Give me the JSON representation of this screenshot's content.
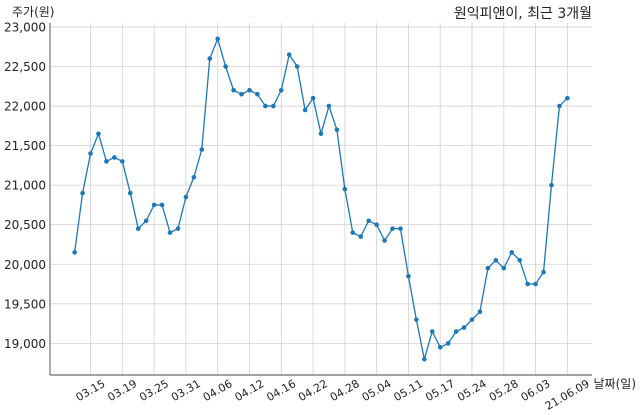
{
  "chart_data": {
    "type": "line",
    "title": "원익피앤이, 최근 3개월",
    "xlabel": "날짜(일)",
    "ylabel": "주가(원)",
    "x": [
      "21.03.11",
      "21.03.12",
      "21.03.15",
      "21.03.16",
      "21.03.17",
      "21.03.18",
      "21.03.19",
      "21.03.22",
      "21.03.23",
      "21.03.24",
      "21.03.25",
      "21.03.26",
      "21.03.29",
      "21.03.30",
      "21.03.31",
      "21.04.01",
      "21.04.02",
      "21.04.05",
      "21.04.06",
      "21.04.07",
      "21.04.08",
      "21.04.09",
      "21.04.12",
      "21.04.13",
      "21.04.14",
      "21.04.15",
      "21.04.16",
      "21.04.19",
      "21.04.20",
      "21.04.21",
      "21.04.22",
      "21.04.23",
      "21.04.26",
      "21.04.27",
      "21.04.28",
      "21.04.29",
      "21.04.30",
      "21.05.03",
      "21.05.04",
      "21.05.06",
      "21.05.07",
      "21.05.10",
      "21.05.11",
      "21.05.12",
      "21.05.13",
      "21.05.14",
      "21.05.17",
      "21.05.18",
      "21.05.20",
      "21.05.21",
      "21.05.24",
      "21.05.25",
      "21.05.26",
      "21.05.27",
      "21.05.28",
      "21.05.31",
      "21.06.01",
      "21.06.02",
      "21.06.03",
      "21.06.04",
      "21.06.07",
      "21.06.08",
      "21.06.09"
    ],
    "series": [
      {
        "values": [
          20150,
          20900,
          21400,
          21650,
          21300,
          21350,
          21300,
          20900,
          20450,
          20550,
          20750,
          20750,
          20400,
          20450,
          20850,
          21100,
          21450,
          22600,
          22850,
          22500,
          22200,
          22150,
          22200,
          22150,
          22000,
          22000,
          22200,
          22650,
          22500,
          21950,
          22100,
          21650,
          22000,
          21700,
          20950,
          20400,
          20350,
          20550,
          20500,
          20300,
          20450,
          20450,
          19850,
          19300,
          18800,
          19150,
          18950,
          19000,
          19150,
          19200,
          19300,
          19400,
          19950,
          20050,
          19950,
          20150,
          20050,
          19750,
          19750,
          19900,
          21000,
          22000,
          22100
        ],
        "color": "#1f77b4",
        "marker": "circle"
      }
    ],
    "ylim": [
      18600,
      23050
    ],
    "yticks": [
      19000,
      19500,
      20000,
      20500,
      21000,
      21500,
      22000,
      22500,
      23000
    ],
    "ytick_labels": [
      "19,000",
      "19,500",
      "20,000",
      "20,500",
      "21,000",
      "21,500",
      "22,000",
      "22,500",
      "23,000"
    ],
    "xticks": [
      {
        "x": "21.03.15",
        "label": "03.15"
      },
      {
        "x": "21.03.19",
        "label": "03.19"
      },
      {
        "x": "21.03.25",
        "label": "03.25"
      },
      {
        "x": "21.03.31",
        "label": "03.31"
      },
      {
        "x": "21.04.06",
        "label": "04.06"
      },
      {
        "x": "21.04.12",
        "label": "04.12"
      },
      {
        "x": "21.04.16",
        "label": "04.16"
      },
      {
        "x": "21.04.22",
        "label": "04.22"
      },
      {
        "x": "21.04.28",
        "label": "04.28"
      },
      {
        "x": "21.05.04",
        "label": "05.04"
      },
      {
        "x": "21.05.11",
        "label": "05.11"
      },
      {
        "x": "21.05.17",
        "label": "05.17"
      },
      {
        "x": "21.05.24",
        "label": "05.24"
      },
      {
        "x": "21.05.28",
        "label": "05.28"
      },
      {
        "x": "21.06.03",
        "label": "06.03"
      },
      {
        "x": "21.06.09",
        "label": "21.06.09"
      }
    ],
    "grid": true,
    "legend": "none"
  }
}
